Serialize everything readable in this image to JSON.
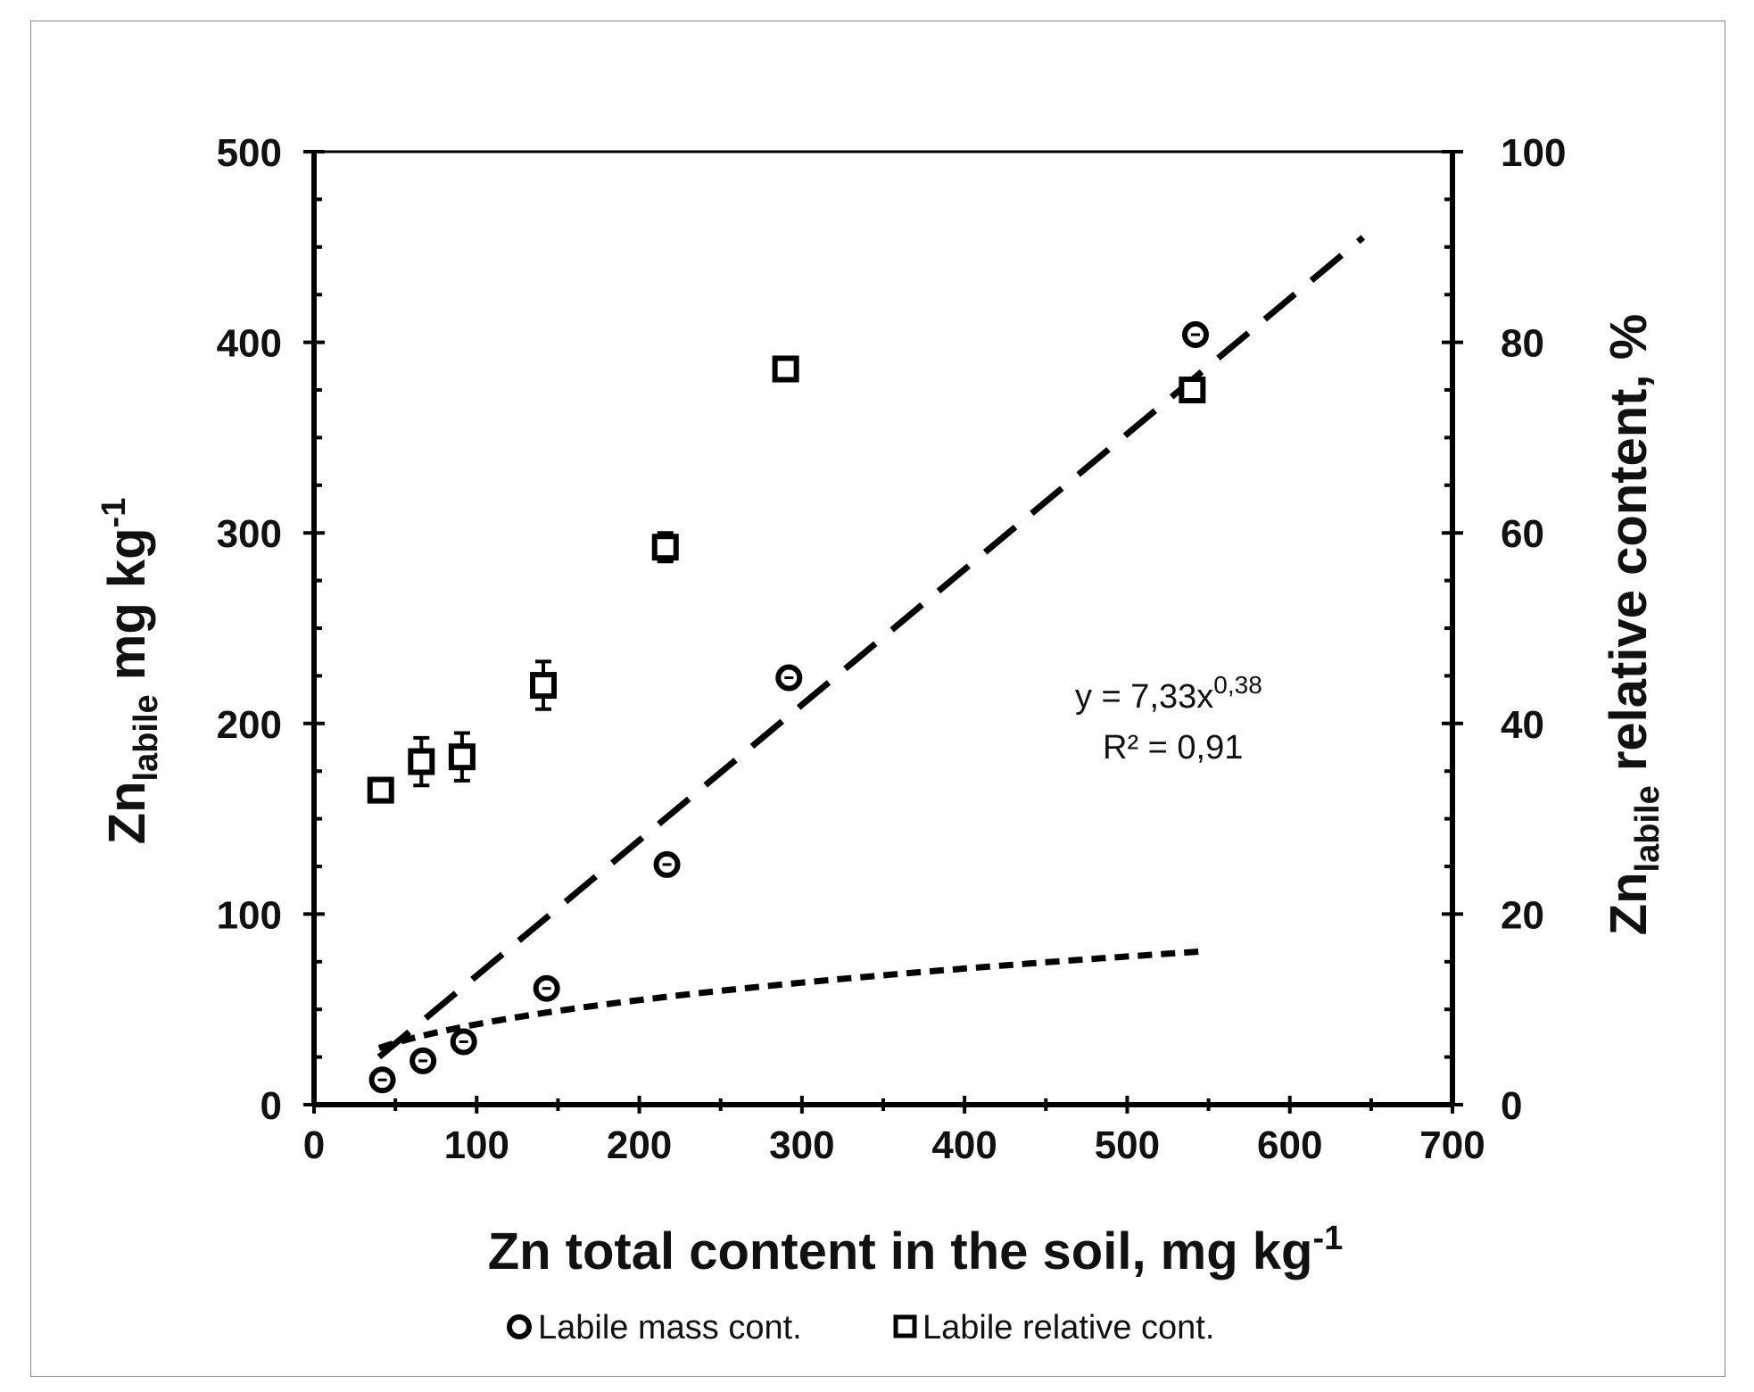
{
  "chart_data": {
    "type": "scatter",
    "x_axis": {
      "label_main": "Zn total content  in the soil, mg kg",
      "label_sup": "-1",
      "range": [
        0,
        700
      ],
      "ticks": [
        "0",
        "100",
        "200",
        "300",
        "400",
        "500",
        "600",
        "700"
      ]
    },
    "y_axis_left": {
      "label_main": "Zn",
      "label_sub": "labile",
      "label_rest": " mg kg",
      "label_sup": "-1",
      "range": [
        0,
        500
      ],
      "ticks": [
        "0",
        "100",
        "200",
        "300",
        "400",
        "500"
      ]
    },
    "y_axis_right": {
      "label_main": "Zn",
      "label_sub": "labile",
      "label_rest": " relative content, %",
      "range": [
        0,
        100
      ],
      "ticks": [
        "0",
        "20",
        "40",
        "60",
        "80",
        "100"
      ]
    },
    "series": [
      {
        "name": "Labile mass cont.",
        "marker": "circle",
        "axis": "left",
        "points": [
          {
            "x": 42,
            "y": 13
          },
          {
            "x": 67,
            "y": 23
          },
          {
            "x": 92,
            "y": 33
          },
          {
            "x": 143,
            "y": 61
          },
          {
            "x": 217,
            "y": 126
          },
          {
            "x": 292,
            "y": 224
          },
          {
            "x": 542,
            "y": 404
          }
        ],
        "trend": {
          "type": "power",
          "a": 7.33,
          "b": 0.38,
          "x_range": [
            40,
            545
          ]
        }
      },
      {
        "name": "Labile relative cont.",
        "marker": "square",
        "axis": "right",
        "points": [
          {
            "x": 41,
            "y": 33,
            "err": 1
          },
          {
            "x": 66,
            "y": 36,
            "err": 2.5
          },
          {
            "x": 91,
            "y": 36.5,
            "err": 2.5
          },
          {
            "x": 141,
            "y": 44,
            "err": 2.5
          },
          {
            "x": 216,
            "y": 58.5,
            "err": 1.5
          },
          {
            "x": 290,
            "y": 77.2,
            "err": 0.5
          },
          {
            "x": 540,
            "y": 75,
            "err": 0.5
          }
        ],
        "trend": {
          "type": "linear",
          "x_range": [
            40,
            645
          ],
          "y_range": [
            5,
            91
          ]
        }
      }
    ],
    "annotation": {
      "equation_main": "y = 7,33x",
      "equation_sup": "0,38",
      "r2": "R² = 0,91"
    },
    "legend": {
      "position": "bottom-center"
    },
    "grid": false
  }
}
